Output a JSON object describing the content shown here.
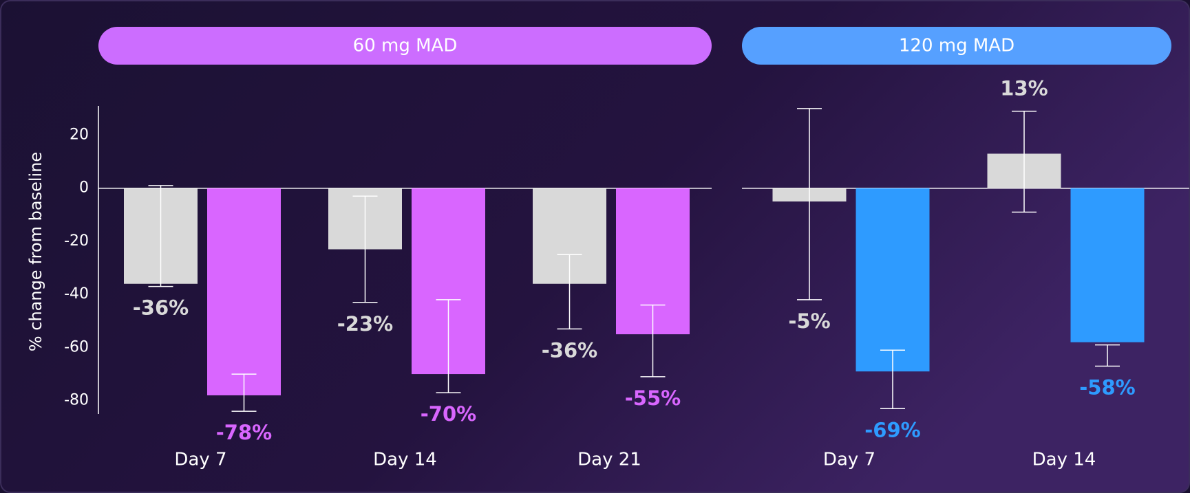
{
  "chart_data": [
    {
      "type": "bar",
      "title": "60 mg MAD",
      "title_color": "#cc6dff",
      "ylabel": "% change from baseline",
      "categories": [
        "Day 7",
        "Day 14",
        "Day 21"
      ],
      "ylim": [
        -85,
        31
      ],
      "yticks": [
        -80,
        -60,
        -40,
        -20,
        0,
        20
      ],
      "series": [
        {
          "color": "#d9d9d9",
          "values": [
            -36,
            -23,
            -36
          ],
          "value_labels": [
            "-36%",
            "-23%",
            "-36%"
          ],
          "error_bars": [
            [
              -37,
              1
            ],
            [
              -43,
              -3
            ],
            [
              -53,
              -25
            ]
          ]
        },
        {
          "color": "#d966ff",
          "values": [
            -78,
            -70,
            -55
          ],
          "value_labels": [
            "-78%",
            "-70%",
            "-55%"
          ],
          "error_bars": [
            [
              -84,
              -70
            ],
            [
              -77,
              -42
            ],
            [
              -71,
              -44
            ]
          ]
        }
      ]
    },
    {
      "type": "bar",
      "title": "120 mg MAD",
      "title_color": "#56a0ff",
      "categories": [
        "Day 7",
        "Day 14"
      ],
      "ylim": [
        -85,
        31
      ],
      "series": [
        {
          "color": "#d9d9d9",
          "values": [
            -5,
            13
          ],
          "value_labels": [
            "-5%",
            "13%"
          ],
          "error_bars": [
            [
              -42,
              30
            ],
            [
              -9,
              29
            ]
          ]
        },
        {
          "color": "#2e9bff",
          "values": [
            -69,
            -58
          ],
          "value_labels": [
            "-69%",
            "-58%"
          ],
          "error_bars": [
            [
              -83,
              -61
            ],
            [
              -67,
              -59
            ]
          ]
        }
      ]
    }
  ]
}
